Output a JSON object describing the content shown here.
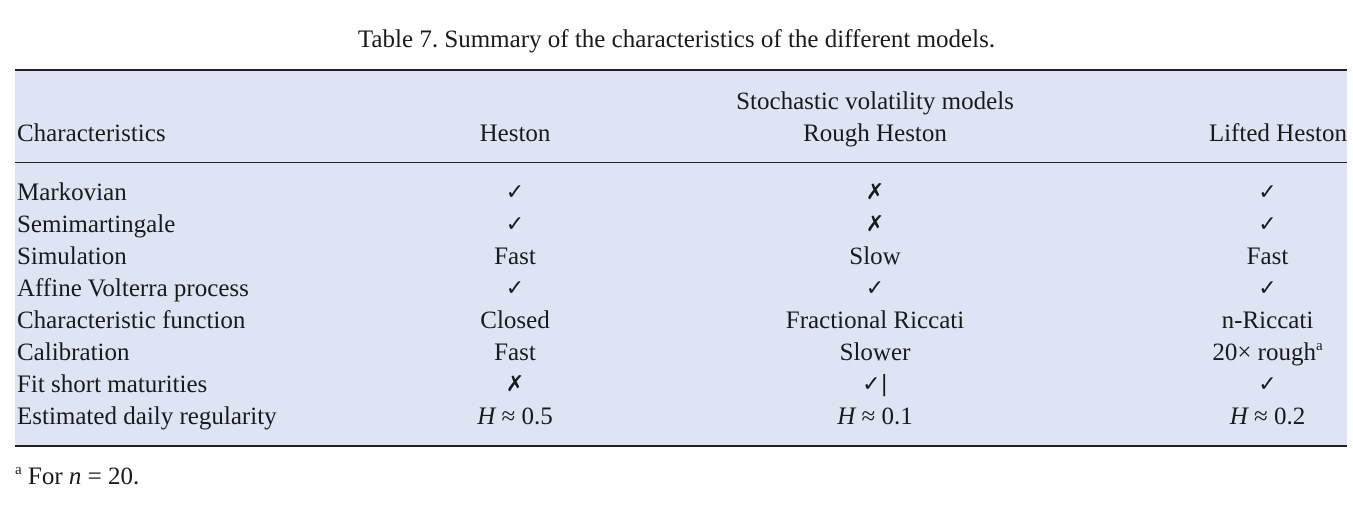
{
  "caption": "Table  7.  Summary of the characteristics of the different models.",
  "header": {
    "group_label": "Stochastic volatility models",
    "col0": "Characteristics",
    "col1": "Heston",
    "col2": "Rough Heston",
    "col3": "Lifted Heston"
  },
  "rows": [
    {
      "label": "Markovian",
      "heston": "✓",
      "rough": "✗",
      "lifted": "✓"
    },
    {
      "label": "Semimartingale",
      "heston": "✓",
      "rough": "✗",
      "lifted": "✓"
    },
    {
      "label": "Simulation",
      "heston": "Fast",
      "rough": "Slow",
      "lifted": "Fast"
    },
    {
      "label": "Affine Volterra process",
      "heston": "✓",
      "rough": "✓",
      "lifted": "✓"
    },
    {
      "label": "Characteristic function",
      "heston": "Closed",
      "rough": "Fractional Riccati",
      "lifted": "n-Riccati"
    },
    {
      "label": "Calibration",
      "heston": "Fast",
      "rough": "Slower",
      "lifted": "20× rough",
      "lifted_sup": "a"
    },
    {
      "label": "Fit short maturities",
      "heston": "✗",
      "rough": "✓|",
      "lifted": "✓"
    },
    {
      "label": "Estimated daily regularity",
      "heston_H": "H",
      "heston_rest": " ≈ 0.5",
      "rough_H": "H",
      "rough_rest": " ≈ 0.1",
      "lifted_H": "H",
      "lifted_rest": " ≈ 0.2"
    }
  ],
  "footnote": {
    "mark": "a",
    "prefix": " For ",
    "var": "n",
    "rest": " = 20."
  }
}
